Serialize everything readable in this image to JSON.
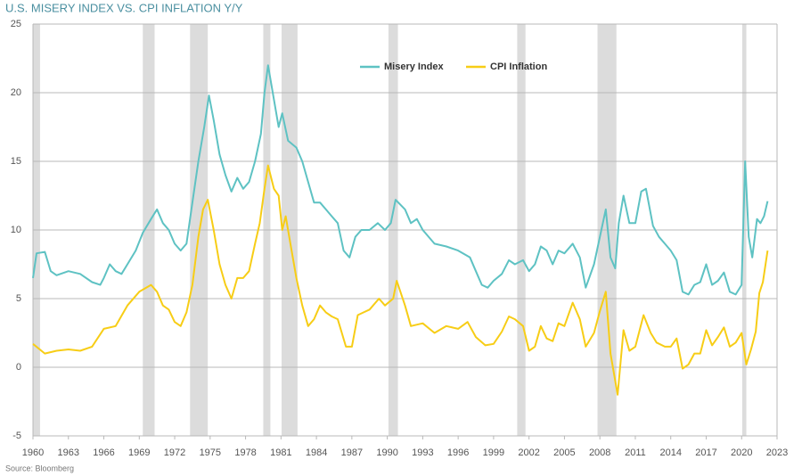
{
  "chart_data": {
    "type": "line",
    "title": "U.S. MISERY INDEX VS. CPI INFLATION Y/Y",
    "source": "Source: Bloomberg",
    "xlim": [
      1960,
      2023
    ],
    "xticks": [
      1960,
      1963,
      1966,
      1969,
      1972,
      1975,
      1978,
      1981,
      1984,
      1987,
      1990,
      1993,
      1996,
      1999,
      2002,
      2005,
      2008,
      2011,
      2014,
      2017,
      2020,
      2023
    ],
    "ylim": [
      -5,
      25
    ],
    "yticks": [
      -5,
      0,
      5,
      10,
      15,
      20,
      25
    ],
    "grid": true,
    "recession_color": "#dcdcdc",
    "recessions": [
      [
        1960.0,
        1960.6
      ],
      [
        1969.3,
        1970.3
      ],
      [
        1973.3,
        1974.8
      ],
      [
        1979.5,
        1980.1
      ],
      [
        1981.05,
        1982.4
      ],
      [
        1990.1,
        1990.9
      ],
      [
        2001.0,
        2001.7
      ],
      [
        2007.8,
        2009.4
      ],
      [
        2020.05,
        2020.4
      ]
    ],
    "series": [
      {
        "name": "Misery Index",
        "color": "#5ec2c3",
        "x": [
          1960,
          1960.3,
          1961,
          1961.5,
          1962,
          1963,
          1964,
          1965,
          1965.7,
          1966,
          1966.5,
          1967,
          1967.5,
          1968,
          1968.7,
          1969.3,
          1970,
          1970.5,
          1971,
          1971.5,
          1972,
          1972.5,
          1973,
          1973.5,
          1974,
          1974.5,
          1974.9,
          1975.3,
          1975.8,
          1976.3,
          1976.8,
          1977.3,
          1977.8,
          1978.3,
          1978.8,
          1979.3,
          1979.6,
          1979.9,
          1980.4,
          1980.8,
          1981.1,
          1981.6,
          1982.3,
          1982.8,
          1983.3,
          1983.8,
          1984.3,
          1984.8,
          1985.3,
          1985.8,
          1986.3,
          1986.8,
          1987.3,
          1987.8,
          1988.5,
          1989.2,
          1989.8,
          1990.3,
          1990.7,
          1991.5,
          1992,
          1992.5,
          1993,
          1994,
          1995,
          1996,
          1997,
          1997.5,
          1998,
          1998.5,
          1999,
          1999.7,
          2000.3,
          2000.8,
          2001.5,
          2002,
          2002.5,
          2003,
          2003.5,
          2004,
          2004.5,
          2005,
          2005.7,
          2006.3,
          2006.8,
          2007.5,
          2008.0,
          2008.5,
          2008.9,
          2009.3,
          2009.6,
          2010,
          2010.5,
          2011,
          2011.5,
          2011.9,
          2012.5,
          2013,
          2013.5,
          2014,
          2014.5,
          2015,
          2015.5,
          2016,
          2016.5,
          2017,
          2017.5,
          2018,
          2018.5,
          2019,
          2019.5,
          2020,
          2020.3,
          2020.6,
          2020.9,
          2021.3,
          2021.6,
          2021.9,
          2022.2
        ],
        "values": [
          6.5,
          8.3,
          8.4,
          7,
          6.7,
          7,
          6.8,
          6.2,
          6.0,
          6.5,
          7.5,
          7,
          6.8,
          7.5,
          8.5,
          9.8,
          10.8,
          11.5,
          10.5,
          10.0,
          9.0,
          8.5,
          9,
          12,
          15,
          17.5,
          19.8,
          18,
          15.5,
          14,
          12.8,
          13.8,
          13.0,
          13.5,
          15,
          17,
          20,
          22,
          19.5,
          17.5,
          18.5,
          16.5,
          16,
          15,
          13.5,
          12,
          12,
          11.5,
          11,
          10.5,
          8.5,
          8.0,
          9.5,
          10,
          10.0,
          10.5,
          10.0,
          10.5,
          12.2,
          11.5,
          10.5,
          10.8,
          10,
          9.0,
          8.8,
          8.5,
          8.0,
          7.0,
          6.0,
          5.8,
          6.3,
          6.8,
          7.8,
          7.5,
          7.8,
          7.0,
          7.5,
          8.8,
          8.5,
          7.5,
          8.5,
          8.3,
          9.0,
          8.0,
          5.8,
          7.5,
          9.5,
          11.5,
          8.0,
          7.2,
          10.5,
          12.5,
          10.5,
          10.5,
          12.8,
          13,
          10.3,
          9.5,
          9.0,
          8.5,
          7.8,
          5.5,
          5.3,
          6.0,
          6.2,
          7.5,
          6.0,
          6.3,
          6.9,
          5.5,
          5.3,
          6.0,
          15,
          9.5,
          8.0,
          10.8,
          10.5,
          11.0,
          12.1
        ]
      },
      {
        "name": "CPI Inflation",
        "color": "#f7cd16",
        "x": [
          1960,
          1961,
          1962,
          1963,
          1964,
          1965,
          1966,
          1967,
          1968,
          1969,
          1970,
          1970.5,
          1971,
          1971.5,
          1972,
          1972.5,
          1973,
          1973.5,
          1974,
          1974.4,
          1974.8,
          1975.3,
          1975.8,
          1976.3,
          1976.8,
          1977.3,
          1977.8,
          1978.3,
          1978.8,
          1979.2,
          1979.6,
          1979.9,
          1980.4,
          1980.8,
          1981.1,
          1981.4,
          1981.8,
          1982.3,
          1982.8,
          1983.3,
          1983.8,
          1984.3,
          1984.8,
          1985.3,
          1985.8,
          1986.5,
          1987.0,
          1987.5,
          1988,
          1988.5,
          1989.3,
          1989.8,
          1990.5,
          1990.8,
          1991.5,
          1992,
          1993,
          1994,
          1995,
          1996,
          1996.8,
          1997.5,
          1998.3,
          1999,
          1999.7,
          2000.3,
          2000.8,
          2001.5,
          2002,
          2002.5,
          2003,
          2003.5,
          2004,
          2004.5,
          2005,
          2005.7,
          2006.3,
          2006.8,
          2007.5,
          2008.0,
          2008.5,
          2008.9,
          2009.5,
          2010,
          2010.5,
          2011,
          2011.7,
          2012.3,
          2012.8,
          2013.5,
          2014,
          2014.5,
          2015,
          2015.5,
          2016,
          2016.5,
          2017,
          2017.5,
          2018,
          2018.5,
          2019,
          2019.5,
          2020,
          2020.4,
          2020.8,
          2021.2,
          2021.5,
          2021.8,
          2022.2
        ],
        "values": [
          1.7,
          1.0,
          1.2,
          1.3,
          1.2,
          1.5,
          2.8,
          3.0,
          4.5,
          5.5,
          6.0,
          5.5,
          4.5,
          4.2,
          3.3,
          3.0,
          4.0,
          6.0,
          9.5,
          11.5,
          12.2,
          10,
          7.5,
          6,
          5,
          6.5,
          6.5,
          7,
          9,
          10.5,
          13,
          14.7,
          13,
          12.5,
          10,
          11,
          9,
          6.5,
          4.5,
          3,
          3.5,
          4.5,
          4.0,
          3.7,
          3.5,
          1.5,
          1.5,
          3.8,
          4.0,
          4.2,
          5.0,
          4.5,
          5.0,
          6.3,
          4.5,
          3.0,
          3.2,
          2.5,
          3.0,
          2.8,
          3.3,
          2.2,
          1.6,
          1.7,
          2.6,
          3.7,
          3.5,
          3.0,
          1.2,
          1.5,
          3.0,
          2.1,
          1.9,
          3.2,
          3.0,
          4.7,
          3.5,
          1.5,
          2.5,
          4.1,
          5.5,
          1.0,
          -2.0,
          2.7,
          1.2,
          1.5,
          3.8,
          2.5,
          1.8,
          1.5,
          1.5,
          2.1,
          -0.1,
          0.2,
          1.0,
          1.0,
          2.7,
          1.6,
          2.2,
          2.9,
          1.5,
          1.8,
          2.5,
          0.2,
          1.3,
          2.6,
          5.4,
          6.2,
          8.5
        ]
      }
    ]
  }
}
